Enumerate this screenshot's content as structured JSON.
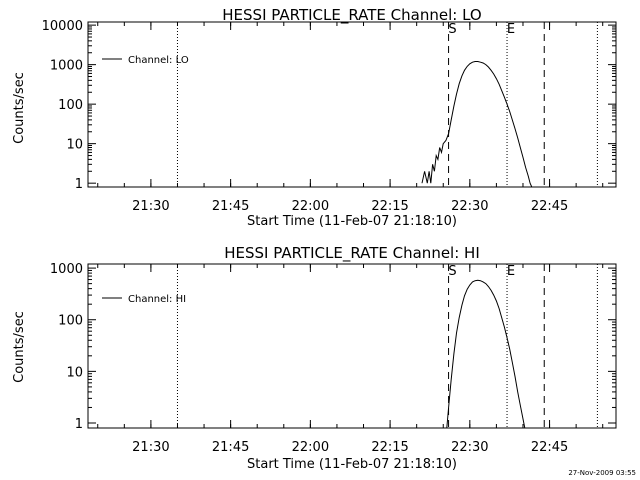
{
  "footer_timestamp": "27-Nov-2009 03:55",
  "colors": {
    "background": "#ffffff",
    "foreground": "#000000"
  },
  "chart_data": [
    {
      "type": "line",
      "title": "HESSI PARTICLE_RATE Channel: LO",
      "xlabel": "Start Time (11-Feb-07 21:18:10)",
      "ylabel": "Counts/sec",
      "yscale": "log",
      "ylim": [
        0.8,
        12000
      ],
      "xlim": [
        "21:18:10",
        "22:57:30"
      ],
      "xticks": [
        "21:30",
        "21:45",
        "22:00",
        "22:15",
        "22:30",
        "22:45"
      ],
      "yticks": [
        "1",
        "10",
        "100",
        "1000",
        "10000"
      ],
      "legend": {
        "position": "top-left",
        "entries": [
          "Channel: LO"
        ]
      },
      "vlines": [
        {
          "time": "21:35:00",
          "style": "dotted"
        },
        {
          "time": "22:26:00",
          "style": "dashed",
          "label": "S"
        },
        {
          "time": "22:37:00",
          "style": "dotted",
          "label": "E"
        },
        {
          "time": "22:44:00",
          "style": "dashed"
        },
        {
          "time": "22:54:00",
          "style": "dotted"
        }
      ],
      "series": [
        {
          "name": "Channel: LO",
          "x": [
            "22:21:00",
            "22:21:30",
            "22:22:00",
            "22:22:20",
            "22:22:40",
            "22:23:00",
            "22:23:20",
            "22:23:40",
            "22:24:00",
            "22:24:20",
            "22:24:40",
            "22:25:00",
            "22:25:30",
            "22:26:00",
            "22:26:30",
            "22:27:00",
            "22:27:30",
            "22:28:00",
            "22:28:30",
            "22:29:00",
            "22:29:30",
            "22:30:00",
            "22:30:30",
            "22:31:00",
            "22:31:30",
            "22:32:00",
            "22:32:30",
            "22:33:00",
            "22:33:30",
            "22:34:00",
            "22:34:30",
            "22:35:00",
            "22:35:30",
            "22:36:00",
            "22:36:30",
            "22:37:00",
            "22:37:30",
            "22:38:00",
            "22:38:30",
            "22:39:00",
            "22:39:30",
            "22:40:00",
            "22:40:30",
            "22:41:00",
            "22:41:20",
            "22:41:40"
          ],
          "y": [
            1,
            2,
            1,
            2,
            1,
            3,
            2,
            5,
            4,
            8,
            6,
            10,
            12,
            18,
            40,
            90,
            180,
            330,
            520,
            720,
            900,
            1050,
            1150,
            1200,
            1200,
            1150,
            1100,
            1000,
            870,
            720,
            580,
            440,
            320,
            220,
            150,
            100,
            65,
            40,
            24,
            14,
            8,
            4.5,
            2.5,
            1.5,
            1.0,
            0.8
          ]
        }
      ]
    },
    {
      "type": "line",
      "title": "HESSI PARTICLE_RATE Channel: HI",
      "xlabel": "Start Time (11-Feb-07 21:18:10)",
      "ylabel": "Counts/sec",
      "yscale": "log",
      "ylim": [
        0.8,
        1200
      ],
      "xlim": [
        "21:18:10",
        "22:57:30"
      ],
      "xticks": [
        "21:30",
        "21:45",
        "22:00",
        "22:15",
        "22:30",
        "22:45"
      ],
      "yticks": [
        "1",
        "10",
        "100",
        "1000"
      ],
      "legend": {
        "position": "top-left",
        "entries": [
          "Channel: HI"
        ]
      },
      "vlines": [
        {
          "time": "21:35:00",
          "style": "dotted"
        },
        {
          "time": "22:26:00",
          "style": "dashed",
          "label": "S"
        },
        {
          "time": "22:37:00",
          "style": "dotted",
          "label": "E"
        },
        {
          "time": "22:44:00",
          "style": "dashed"
        },
        {
          "time": "22:54:00",
          "style": "dotted"
        }
      ],
      "series": [
        {
          "name": "Channel: HI",
          "x": [
            "22:25:40",
            "22:26:00",
            "22:26:30",
            "22:27:00",
            "22:27:30",
            "22:28:00",
            "22:28:30",
            "22:29:00",
            "22:29:30",
            "22:30:00",
            "22:30:30",
            "22:31:00",
            "22:31:30",
            "22:32:00",
            "22:32:30",
            "22:33:00",
            "22:33:30",
            "22:34:00",
            "22:34:30",
            "22:35:00",
            "22:35:30",
            "22:36:00",
            "22:36:30",
            "22:37:00",
            "22:37:30",
            "22:38:00",
            "22:38:30",
            "22:39:00",
            "22:39:30",
            "22:40:00",
            "22:40:20"
          ],
          "y": [
            0.8,
            2,
            7,
            22,
            55,
            110,
            190,
            290,
            390,
            470,
            540,
            570,
            580,
            570,
            540,
            500,
            440,
            370,
            300,
            230,
            165,
            110,
            72,
            45,
            27,
            15,
            8,
            4,
            2.2,
            1.2,
            0.8
          ]
        }
      ]
    }
  ]
}
